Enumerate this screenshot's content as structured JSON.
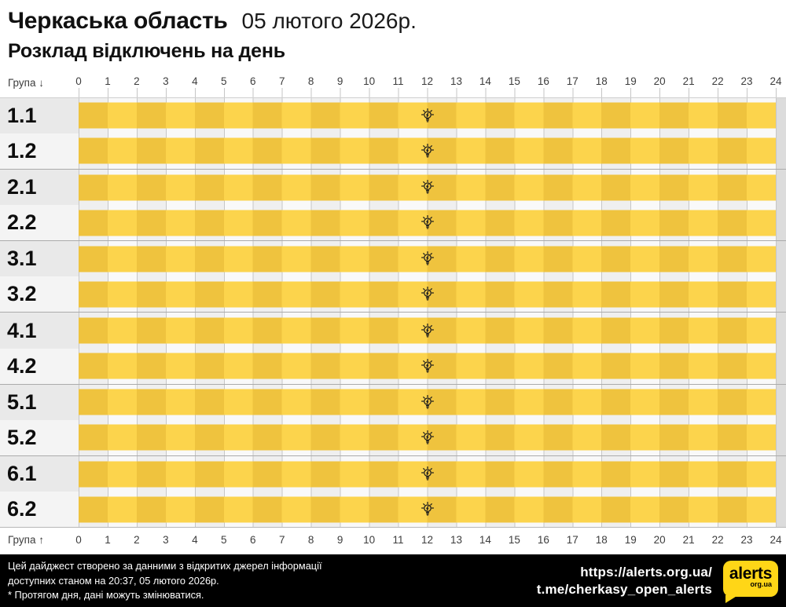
{
  "header": {
    "region": "Черкаська область",
    "date": "05 лютого 2026р.",
    "subtitle": "Розклад відключень на день"
  },
  "axis": {
    "group_label_top": "Група ↓",
    "group_label_bottom": "Група ↑",
    "hours": [
      "0",
      "1",
      "2",
      "3",
      "4",
      "5",
      "6",
      "7",
      "8",
      "9",
      "10",
      "11",
      "12",
      "13",
      "14",
      "15",
      "16",
      "17",
      "18",
      "19",
      "20",
      "21",
      "22",
      "23",
      "24"
    ]
  },
  "chart_data": {
    "type": "heatmap",
    "title": "Розклад відключень на день",
    "region": "Черкаська область",
    "date": "05 лютого 2026р.",
    "x_range": [
      0,
      24
    ],
    "x_ticks": [
      0,
      1,
      2,
      3,
      4,
      5,
      6,
      7,
      8,
      9,
      10,
      11,
      12,
      13,
      14,
      15,
      16,
      17,
      18,
      19,
      20,
      21,
      22,
      23,
      24
    ],
    "categories": [
      "1.1",
      "1.2",
      "2.1",
      "2.2",
      "3.1",
      "3.2",
      "4.1",
      "4.2",
      "5.1",
      "5.2",
      "6.1",
      "6.2"
    ],
    "series": [
      {
        "name": "1.1",
        "segments": [
          {
            "start": 0,
            "end": 24,
            "status": "on"
          }
        ],
        "marker": {
          "icon": "lightbulb",
          "hour": 12
        }
      },
      {
        "name": "1.2",
        "segments": [
          {
            "start": 0,
            "end": 24,
            "status": "on"
          }
        ],
        "marker": {
          "icon": "lightbulb",
          "hour": 12
        }
      },
      {
        "name": "2.1",
        "segments": [
          {
            "start": 0,
            "end": 24,
            "status": "on"
          }
        ],
        "marker": {
          "icon": "lightbulb",
          "hour": 12
        }
      },
      {
        "name": "2.2",
        "segments": [
          {
            "start": 0,
            "end": 24,
            "status": "on"
          }
        ],
        "marker": {
          "icon": "lightbulb",
          "hour": 12
        }
      },
      {
        "name": "3.1",
        "segments": [
          {
            "start": 0,
            "end": 24,
            "status": "on"
          }
        ],
        "marker": {
          "icon": "lightbulb",
          "hour": 12
        }
      },
      {
        "name": "3.2",
        "segments": [
          {
            "start": 0,
            "end": 24,
            "status": "on"
          }
        ],
        "marker": {
          "icon": "lightbulb",
          "hour": 12
        }
      },
      {
        "name": "4.1",
        "segments": [
          {
            "start": 0,
            "end": 24,
            "status": "on"
          }
        ],
        "marker": {
          "icon": "lightbulb",
          "hour": 12
        }
      },
      {
        "name": "4.2",
        "segments": [
          {
            "start": 0,
            "end": 24,
            "status": "on"
          }
        ],
        "marker": {
          "icon": "lightbulb",
          "hour": 12
        }
      },
      {
        "name": "5.1",
        "segments": [
          {
            "start": 0,
            "end": 24,
            "status": "on"
          }
        ],
        "marker": {
          "icon": "lightbulb",
          "hour": 12
        }
      },
      {
        "name": "5.2",
        "segments": [
          {
            "start": 0,
            "end": 24,
            "status": "on"
          }
        ],
        "marker": {
          "icon": "lightbulb",
          "hour": 12
        }
      },
      {
        "name": "6.1",
        "segments": [
          {
            "start": 0,
            "end": 24,
            "status": "on"
          }
        ],
        "marker": {
          "icon": "lightbulb",
          "hour": 12
        }
      },
      {
        "name": "6.2",
        "segments": [
          {
            "start": 0,
            "end": 24,
            "status": "on"
          }
        ],
        "marker": {
          "icon": "lightbulb",
          "hour": 12
        }
      }
    ],
    "colors": {
      "cell_on_dark": "#efc33e",
      "cell_on_light": "#fcd44c"
    },
    "legend_position": "none",
    "grid": true
  },
  "footer": {
    "note_line1": "Цей дайджест створено за данними з відкритих джерел інформації",
    "note_line2": "доступних станом на 20:37, 05 лютого 2026р.",
    "note_line3": "* Протягом дня, дані можуть змінюватися.",
    "url": "https://alerts.org.ua/",
    "telegram": "t.me/cherkasy_open_alerts",
    "logo": {
      "text": "alerts",
      "sub": "org.ua"
    }
  }
}
